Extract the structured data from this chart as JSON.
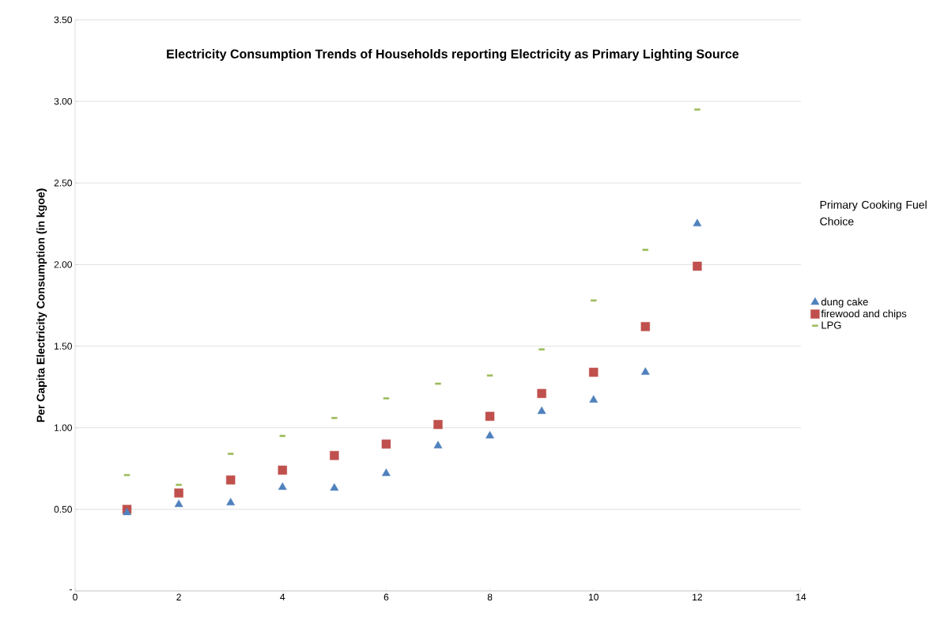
{
  "chart_data": {
    "type": "scatter",
    "title": "Electricity Consumption Trends of Households reporting Electricity as Primary Lighting Source",
    "ylabel": "Per Capita Electricity Consumption (in kgoe)",
    "legend_title": "Primary Cooking Fuel Choice",
    "x": [
      1,
      2,
      3,
      4,
      5,
      6,
      7,
      8,
      9,
      10,
      11,
      12
    ],
    "series": [
      {
        "name": "dung cake",
        "color": "#4f81bd",
        "marker": "triangle",
        "values": [
          0.48,
          0.53,
          0.54,
          0.635,
          0.63,
          0.72,
          0.89,
          0.95,
          1.1,
          1.17,
          1.34,
          2.25
        ]
      },
      {
        "name": "firewood and chips",
        "color": "#c0504d",
        "marker": "square",
        "values": [
          0.5,
          0.6,
          0.68,
          0.74,
          0.83,
          0.9,
          1.02,
          1.07,
          1.21,
          1.34,
          1.62,
          1.99
        ]
      },
      {
        "name": "LPG",
        "color": "#9bbb59",
        "values": [
          0.71,
          0.65,
          0.84,
          0.95,
          1.06,
          1.18,
          1.27,
          1.32,
          1.48,
          1.78,
          2.09,
          2.95
        ]
      }
    ],
    "xlim": [
      0,
      14
    ],
    "xticks": [
      0,
      2,
      4,
      6,
      8,
      10,
      12,
      14
    ],
    "ylim": [
      0,
      3.5
    ],
    "yticks": [
      {
        "value": 0,
        "label": "-"
      },
      {
        "value": 0.5,
        "label": "0.50"
      },
      {
        "value": 1,
        "label": "1.00"
      },
      {
        "value": 1.5,
        "label": "1.50"
      },
      {
        "value": 2,
        "label": "2.00"
      },
      {
        "value": 2.5,
        "label": "2.50"
      },
      {
        "value": 3,
        "label": "3.00"
      },
      {
        "value": 3.5,
        "label": "3.50"
      }
    ],
    "grid": "y",
    "legend": "right"
  }
}
